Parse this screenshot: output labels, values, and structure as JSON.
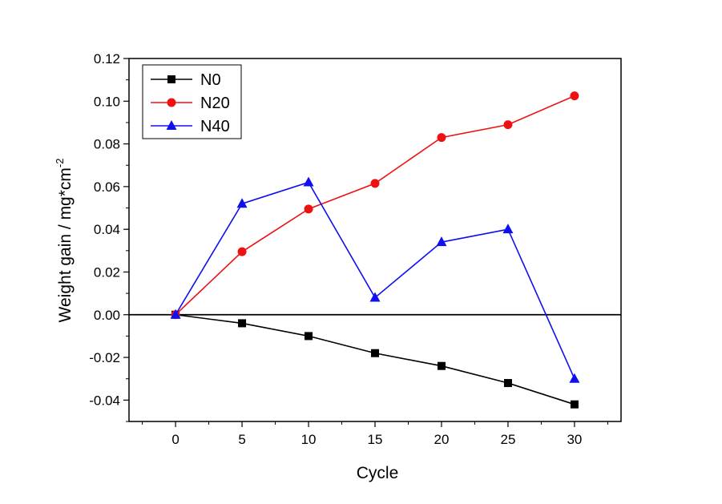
{
  "chart_data": {
    "type": "line",
    "title": "",
    "xlabel": "Cycle",
    "ylabel": "Weight gain / mg*cm",
    "ylabel_superscript": "-2",
    "xlim": [
      -3.5,
      33.5
    ],
    "ylim": [
      -0.05,
      0.12
    ],
    "x_ticks": [
      0,
      5,
      10,
      15,
      20,
      25,
      30
    ],
    "y_ticks": [
      -0.04,
      -0.02,
      0.0,
      0.02,
      0.04,
      0.06,
      0.08,
      0.1,
      0.12
    ],
    "y_tick_labels": [
      "-0.04",
      "-0.02",
      "0.00",
      "0.02",
      "0.04",
      "0.06",
      "0.08",
      "0.10",
      "0.12"
    ],
    "x_tick_labels": [
      "0",
      "5",
      "10",
      "15",
      "20",
      "25",
      "30"
    ],
    "zero_line": true,
    "legend_position": "top-left",
    "x": [
      0,
      5,
      10,
      15,
      20,
      25,
      30
    ],
    "series": [
      {
        "name": "N0",
        "color": "#000000",
        "marker": "square",
        "values": [
          0.0,
          -0.004,
          -0.01,
          -0.018,
          -0.024,
          -0.032,
          -0.042
        ]
      },
      {
        "name": "N20",
        "color": "#ee1111",
        "marker": "circle",
        "values": [
          0.0,
          0.0295,
          0.0495,
          0.0615,
          0.083,
          0.089,
          0.1025
        ]
      },
      {
        "name": "N40",
        "color": "#1010ee",
        "marker": "triangle",
        "values": [
          0.0,
          0.052,
          0.062,
          0.008,
          0.034,
          0.04,
          -0.03
        ]
      }
    ]
  }
}
